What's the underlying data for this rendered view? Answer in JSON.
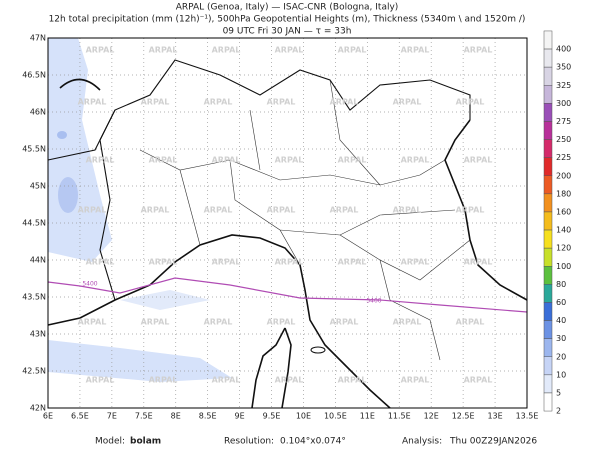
{
  "header": {
    "lines": [
      "ARPAL (Genoa, Italy)  —  ISAC-CNR (Bologna, Italy)",
      "12h total precipitation (mm (12h)⁻¹), 500hPa Geopotential Heights (m), Thickness (5340m \\ and 1520m /)",
      "09 UTC Fri 30 JAN  —  τ = 33h"
    ]
  },
  "map": {
    "lat_labels": [
      "42N",
      "42.5N",
      "43N",
      "43.5N",
      "44N",
      "44.5N",
      "45N",
      "45.5N",
      "46N",
      "46.5N",
      "47N"
    ],
    "lon_labels": [
      "6E",
      "6.5E",
      "7E",
      "7.5E",
      "8E",
      "8.5E",
      "9E",
      "9.5E",
      "10E",
      "10.5E",
      "11E",
      "11.5E",
      "12E",
      "12.5E",
      "13E",
      "13.5E"
    ],
    "contour_labels": [
      "5400",
      "5400"
    ],
    "watermark": "ARPAL"
  },
  "colorbar": {
    "levels": [
      "400",
      "350",
      "325",
      "300",
      "275",
      "250",
      "225",
      "200",
      "180",
      "160",
      "140",
      "120",
      "100",
      "80",
      "60",
      "40",
      "30",
      "20",
      "10",
      "5",
      "2"
    ],
    "colors": [
      "#f4f4f4",
      "#e8e8ee",
      "#d8d4e4",
      "#c6b6da",
      "#9a4fb8",
      "#b8309a",
      "#d42a6a",
      "#e02a2a",
      "#ec5a24",
      "#f2901e",
      "#f4bc1c",
      "#f6e01e",
      "#c8e02a",
      "#5cc03e",
      "#2aa89a",
      "#3a6ed8",
      "#6c92e4",
      "#9cb6ee",
      "#c6d4f6",
      "#e2eafa",
      "#ffffff"
    ]
  },
  "footer": {
    "model_label": "Model:",
    "model": "bolam",
    "resolution_label": "Resolution:",
    "resolution": "0.104°x0.074°",
    "analysis_label": "Analysis:",
    "analysis": "Thu 00Z29JAN2026"
  }
}
